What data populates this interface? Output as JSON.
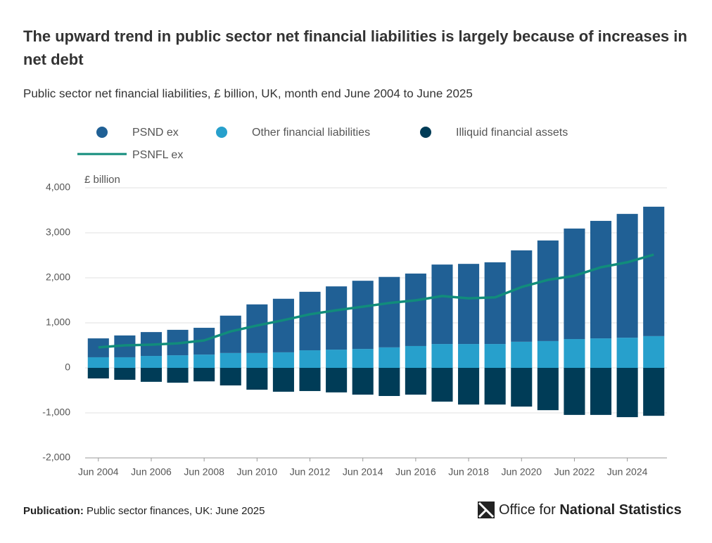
{
  "chart_data": {
    "type": "bar",
    "stacked": true,
    "title": "The upward trend in public sector net financial liabilities is largely because of increases in net debt",
    "subtitle": "Public sector net financial liabilities, £ billion, UK, month end June 2004 to June 2025",
    "y_axis_label": "£ billion",
    "categories": [
      "Jun 2004",
      null,
      "Jun 2006",
      null,
      "Jun 2008",
      null,
      "Jun 2010",
      null,
      "Jun 2012",
      null,
      "Jun 2014",
      null,
      "Jun 2016",
      null,
      "Jun 2018",
      null,
      "Jun 2020",
      null,
      "Jun 2022",
      null,
      "Jun 2024",
      null
    ],
    "series": [
      {
        "name": "PSND ex",
        "type": "bar",
        "color": "#206095",
        "values": [
          420,
          485,
          530,
          565,
          595,
          830,
          1080,
          1190,
          1300,
          1405,
          1515,
          1565,
          1610,
          1765,
          1780,
          1815,
          2030,
          2235,
          2455,
          2610,
          2750,
          2875
        ]
      },
      {
        "name": "Other financial liabilities",
        "type": "bar",
        "color": "#27a0cc",
        "values": [
          235,
          235,
          265,
          280,
          295,
          330,
          330,
          345,
          390,
          405,
          420,
          455,
          485,
          530,
          530,
          530,
          580,
          595,
          640,
          655,
          670,
          705
        ]
      },
      {
        "name": "Illiquid financial assets",
        "type": "bar",
        "color": "#003c57",
        "values": [
          -235,
          -265,
          -310,
          -330,
          -300,
          -390,
          -485,
          -530,
          -515,
          -545,
          -595,
          -625,
          -595,
          -750,
          -815,
          -815,
          -860,
          -940,
          -1045,
          -1045,
          -1095,
          -1065
        ]
      },
      {
        "name": "PSNFL ex",
        "type": "line",
        "color": "#118c7b",
        "values": [
          455,
          500,
          515,
          545,
          610,
          810,
          940,
          1060,
          1190,
          1280,
          1360,
          1440,
          1500,
          1595,
          1545,
          1565,
          1795,
          1955,
          2045,
          2235,
          2345,
          2515
        ]
      }
    ],
    "ylim": [
      -2000,
      4000
    ],
    "yticks": [
      {
        "value": -2000,
        "label": "-2,000"
      },
      {
        "value": -1000,
        "label": "-1,000"
      },
      0,
      {
        "value": 1000,
        "label": "1,000"
      },
      {
        "value": 2000,
        "label": "2,000"
      },
      {
        "value": 3000,
        "label": "3,000"
      },
      {
        "value": 4000,
        "label": "4,000"
      }
    ],
    "grid": true
  },
  "footer": {
    "publication_label": "Publication:",
    "publication": "Public sector finances, UK: June 2025",
    "logo_light": "Office for",
    "logo_bold": "National Statistics"
  }
}
